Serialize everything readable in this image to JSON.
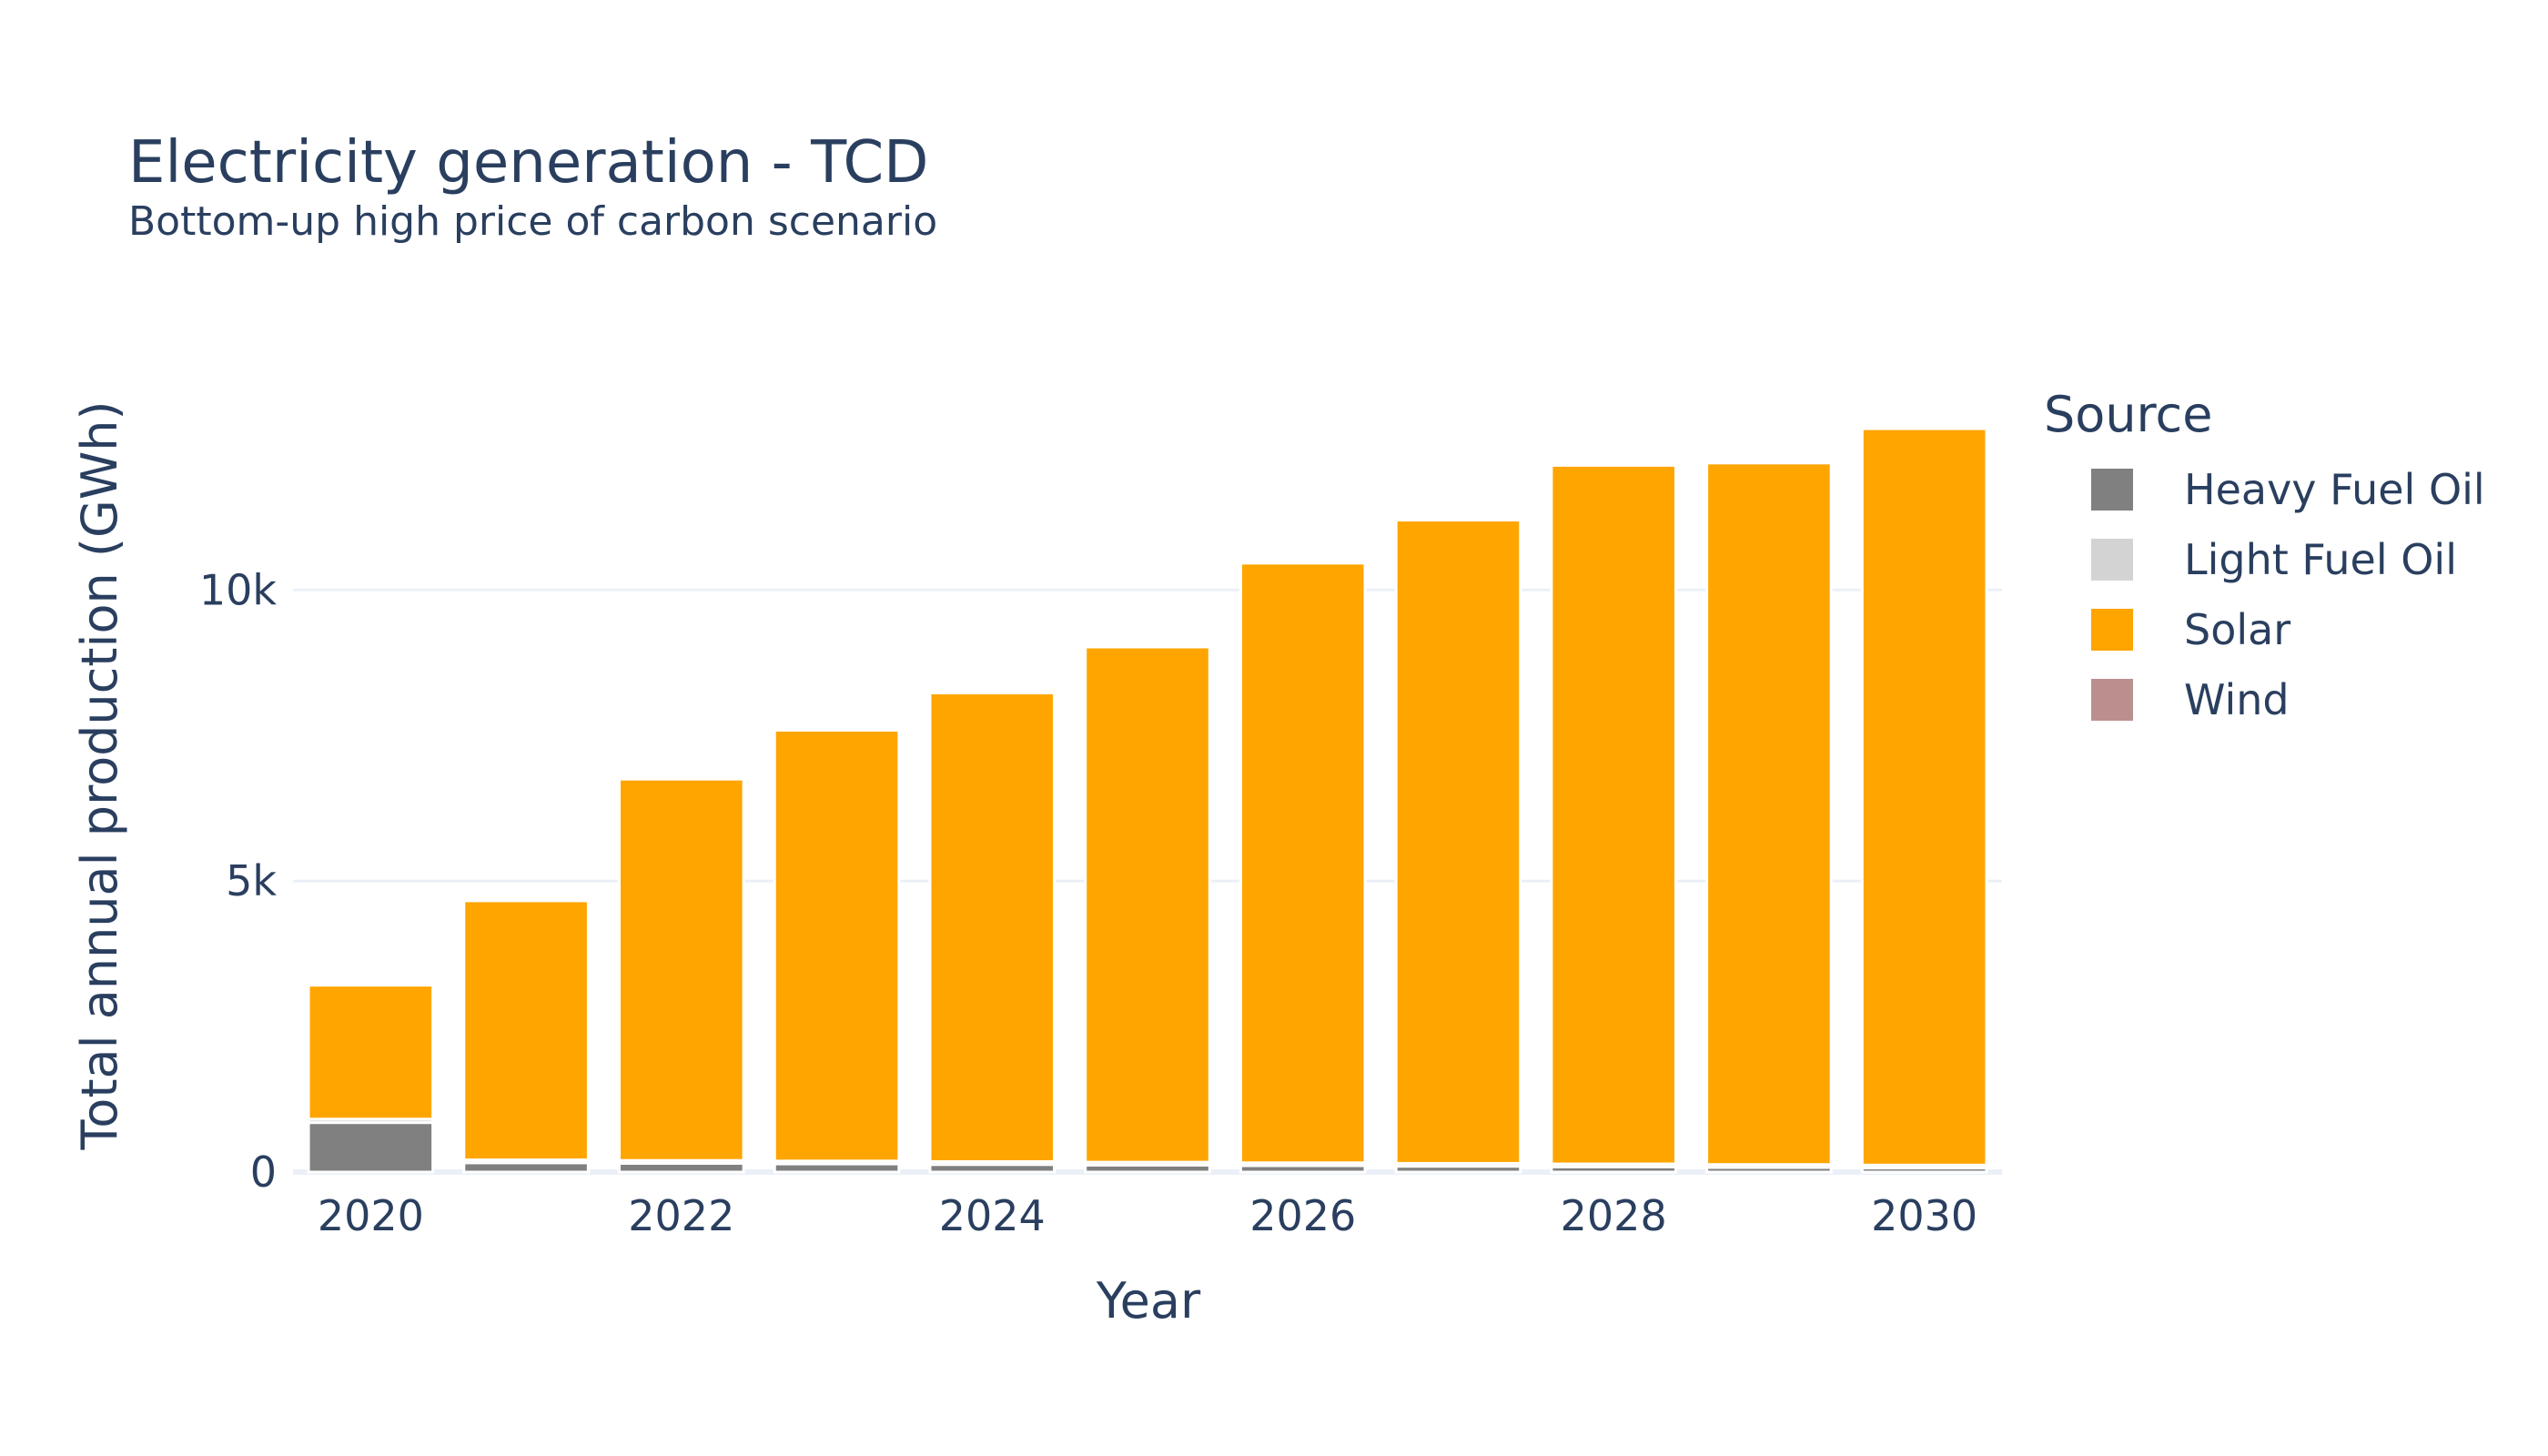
{
  "chart_data": {
    "type": "bar",
    "stacked": true,
    "title": "Electricity generation - TCD",
    "subtitle": "Bottom-up high price of carbon scenario",
    "xlabel": "Year",
    "ylabel": "Total annual production (GWh)",
    "legend_title": "Source",
    "legend_position": "right",
    "grid": true,
    "x": [
      2020,
      2021,
      2022,
      2023,
      2024,
      2025,
      2026,
      2027,
      2028,
      2029,
      2030
    ],
    "x_ticks": [
      2020,
      2022,
      2024,
      2026,
      2028,
      2030
    ],
    "x_tick_labels": [
      "2020",
      "2022",
      "2024",
      "2026",
      "2028",
      "2030"
    ],
    "y_ticks": [
      0,
      5000,
      10000
    ],
    "y_tick_labels": [
      "0",
      "5k",
      "10k"
    ],
    "ylim": [
      0,
      13600
    ],
    "series": [
      {
        "name": "Heavy Fuel Oil",
        "color": "#808080",
        "values": [
          850,
          160,
          150,
          140,
          130,
          120,
          110,
          100,
          90,
          80,
          70
        ]
      },
      {
        "name": "Light Fuel Oil",
        "color": "#d3d3d3",
        "values": [
          60,
          50,
          50,
          50,
          50,
          50,
          50,
          50,
          50,
          50,
          50
        ]
      },
      {
        "name": "Solar",
        "color": "#ffa500",
        "values": [
          2300,
          4450,
          6550,
          7400,
          8050,
          8850,
          10300,
          11050,
          12000,
          12050,
          12650
        ]
      },
      {
        "name": "Wind",
        "color": "#bc8f8f",
        "values": [
          0,
          0,
          0,
          0,
          0,
          0,
          0,
          0,
          0,
          0,
          0
        ]
      }
    ]
  }
}
